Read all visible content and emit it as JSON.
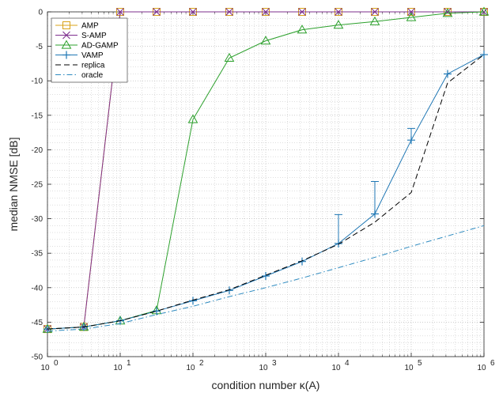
{
  "chart_data": {
    "type": "line",
    "xlabel": "condition number κ(A)",
    "ylabel": "median NMSE [dB]",
    "xscale": "log",
    "xlim": [
      1,
      1000000
    ],
    "ylim": [
      -50,
      0
    ],
    "grid": true,
    "minor_grid": true,
    "legend_position": "top-left",
    "x_ticks": [
      {
        "value": 1,
        "base": "10",
        "exp": "0"
      },
      {
        "value": 10,
        "base": "10",
        "exp": "1"
      },
      {
        "value": 100,
        "base": "10",
        "exp": "2"
      },
      {
        "value": 1000,
        "base": "10",
        "exp": "3"
      },
      {
        "value": 10000,
        "base": "10",
        "exp": "4"
      },
      {
        "value": 100000,
        "base": "10",
        "exp": "5"
      },
      {
        "value": 1000000,
        "base": "10",
        "exp": "6"
      }
    ],
    "y_ticks": [
      {
        "value": 0,
        "label": "0"
      },
      {
        "value": -5,
        "label": "-5"
      },
      {
        "value": -10,
        "label": "-10"
      },
      {
        "value": -15,
        "label": "-15"
      },
      {
        "value": -20,
        "label": "-20"
      },
      {
        "value": -25,
        "label": "-25"
      },
      {
        "value": -30,
        "label": "-30"
      },
      {
        "value": -35,
        "label": "-35"
      },
      {
        "value": -40,
        "label": "-40"
      },
      {
        "value": -45,
        "label": "-45"
      },
      {
        "value": -50,
        "label": "-50"
      }
    ],
    "series": [
      {
        "name": "AMP",
        "color": "#D9A319",
        "marker": "square",
        "dash": "solid",
        "x": [
          1,
          3.16,
          10,
          31.6,
          100,
          316,
          1000,
          3162,
          10000,
          31623,
          100000,
          316228,
          1000000
        ],
        "y": [
          -46.0,
          -45.7,
          0,
          0,
          0,
          0,
          0,
          0,
          0,
          0,
          0,
          0,
          0
        ]
      },
      {
        "name": "S-AMP",
        "color": "#7E2F8E",
        "marker": "x",
        "dash": "solid",
        "x": [
          1,
          3.16,
          10,
          31.6,
          100,
          316,
          1000,
          3162,
          10000,
          31623,
          100000,
          316228,
          1000000
        ],
        "y": [
          -46.0,
          -45.7,
          0,
          0,
          0,
          0,
          0,
          0,
          0,
          0,
          0,
          0,
          0
        ]
      },
      {
        "name": "AD-GAMP",
        "color": "#2CA02C",
        "marker": "triangle",
        "dash": "solid",
        "x": [
          1,
          3.16,
          10,
          31.6,
          100,
          316,
          1000,
          3162,
          10000,
          31623,
          100000,
          316228,
          1000000
        ],
        "y": [
          -46.0,
          -45.7,
          -44.8,
          -43.3,
          -15.6,
          -6.7,
          -4.2,
          -2.6,
          -1.9,
          -1.4,
          -0.8,
          -0.2,
          0
        ]
      },
      {
        "name": "VAMP",
        "color": "#1F77B4",
        "marker": "plus",
        "dash": "solid",
        "x": [
          1,
          3.16,
          10,
          31.6,
          100,
          316,
          1000,
          3162,
          10000,
          31623,
          100000,
          316228,
          1000000
        ],
        "y": [
          -46.0,
          -45.7,
          -44.8,
          -43.4,
          -41.9,
          -40.4,
          -38.3,
          -36.2,
          -33.6,
          -29.3,
          -18.6,
          -9.0,
          -6.2
        ],
        "error_bars": [
          {
            "x": 10000,
            "upper": -29.4
          },
          {
            "x": 31623,
            "upper": -24.6
          },
          {
            "x": 100000,
            "upper": -16.9
          }
        ]
      },
      {
        "name": "replica",
        "color": "#000000",
        "marker": "none",
        "dash": "dashed",
        "x": [
          1,
          3.16,
          10,
          31.6,
          100,
          316,
          1000,
          3162,
          10000,
          31623,
          100000,
          316228,
          1000000
        ],
        "y": [
          -46.0,
          -45.7,
          -44.8,
          -43.4,
          -41.8,
          -40.3,
          -38.2,
          -36.1,
          -33.7,
          -30.5,
          -26.2,
          -10.3,
          -6.2
        ]
      },
      {
        "name": "oracle",
        "color": "#2E8BC0",
        "marker": "none",
        "dash": "dashdot",
        "x": [
          1,
          3.16,
          10,
          31.6,
          100,
          316,
          1000,
          3162,
          10000,
          31623,
          100000,
          316228,
          1000000
        ],
        "y": [
          -46.3,
          -46.0,
          -45.2,
          -43.9,
          -42.7,
          -41.3,
          -40.0,
          -38.6,
          -37.1,
          -35.6,
          -34.0,
          -32.5,
          -31.0
        ]
      }
    ]
  }
}
